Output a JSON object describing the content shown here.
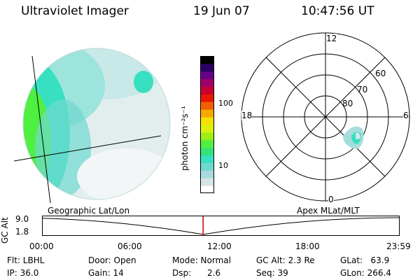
{
  "header": {
    "title": "Ultraviolet Imager",
    "date": "19 Jun 07",
    "time": "10:47:56 UT"
  },
  "colorbar": {
    "unit_label": "photon cm⁻²s⁻¹",
    "ticks": [
      {
        "value": 100,
        "label": "100"
      },
      {
        "value": 10,
        "label": "10"
      }
    ],
    "colors": [
      "#ffffff",
      "#d6e6e6",
      "#a6dcdc",
      "#6fd8d0",
      "#36e0c0",
      "#36e07a",
      "#50f040",
      "#9cf018",
      "#dcf010",
      "#f4e000",
      "#f6a800",
      "#f06000",
      "#e81800",
      "#c80030",
      "#a0006a",
      "#68008a",
      "#2a0060",
      "#000000"
    ]
  },
  "images": {
    "left_label": "Geographic Lat/Lon",
    "right_label": "Apex MLat/MLT"
  },
  "polar": {
    "mlt_labels": {
      "top": "12",
      "left": "18",
      "right": "6",
      "bottom": "0"
    },
    "lat_labels": [
      "60",
      "70",
      "80"
    ]
  },
  "timeline": {
    "ylabel": "GC Alt",
    "y_ticks": [
      "9.0",
      "1.8"
    ],
    "x_ticks": [
      "00:00",
      "06:00",
      "12:00",
      "18:00",
      "23:59"
    ],
    "marker_time": "10:47:56",
    "marker_color": "#c00000"
  },
  "status": {
    "flt": "Flt: LBHL",
    "ip": "IP: 36.0",
    "door": "Door: Open",
    "gain": "Gain: 14",
    "mode": "Mode: Normal",
    "dsp": "Dsp:      2.6",
    "gcalt": "GC Alt: 2.3 Re",
    "seq": "Seq: 39",
    "glat": "GLat:   63.9",
    "glon": "GLon: 266.4"
  }
}
